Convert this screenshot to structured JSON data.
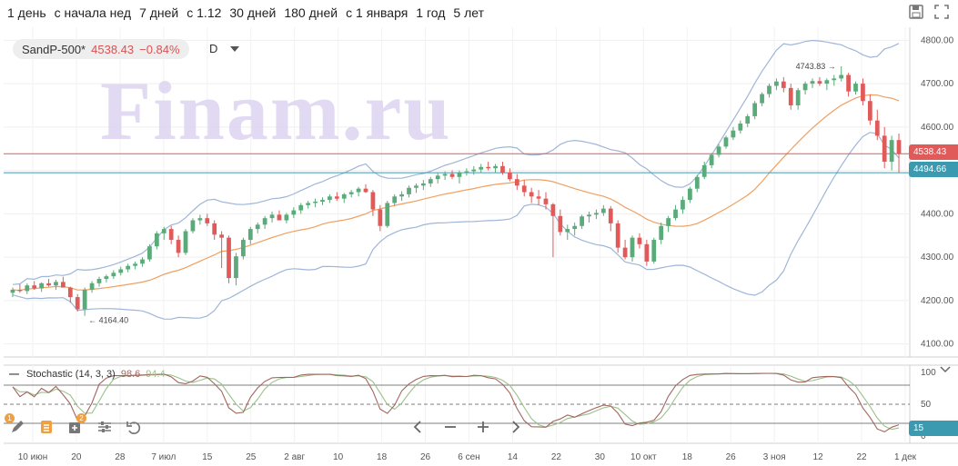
{
  "periods": [
    "1 день",
    "с начала нед",
    "7 дней",
    "с 1.12",
    "30 дней",
    "180 дней",
    "с 1 января",
    "1 год",
    "5 лет"
  ],
  "ticker": {
    "name": "SandP-500*",
    "price": "4538.43",
    "change": "−0.84%",
    "interval": "D"
  },
  "watermark": "Finam.ru",
  "colors": {
    "up": "#5aaa7a",
    "down": "#e05a5a",
    "bb": "#9fb6d8",
    "ma": "#f0a060",
    "stochK": "#a0665e",
    "stochD": "#9cc08a",
    "lastLine": "#e05a5a",
    "blueLine": "#3b9ab0"
  },
  "price_tags": {
    "last": "4538.43",
    "level": "4494.66"
  },
  "annotations": {
    "high": "4743.83",
    "low": "4164.40"
  },
  "stochastic": {
    "label": "Stochastic (14, 3, 3)",
    "k": "98.6",
    "d": "94.4",
    "current": "15"
  },
  "chart_data": {
    "type": "candlestick",
    "y_axis": {
      "ticks": [
        "4800.00",
        "4700.00",
        "4600.00",
        "4500.00",
        "4400.00",
        "4300.00",
        "4200.00",
        "4100.00"
      ],
      "ylim": [
        4070,
        4830
      ]
    },
    "x_axis": {
      "ticks": [
        "10 июн",
        "20",
        "28",
        "7 июл",
        "15",
        "25",
        "2 авг",
        "10",
        "18",
        "26",
        "6 сен",
        "14",
        "22",
        "30",
        "10 окт",
        "18",
        "26",
        "3 ноя",
        "12",
        "22",
        "1 дек"
      ]
    },
    "stoch_axis": {
      "ticks": [
        "100",
        "50",
        "0"
      ],
      "levels": [
        80,
        50,
        20
      ]
    },
    "candles": [
      [
        4218,
        4230,
        4208,
        4225
      ],
      [
        4225,
        4238,
        4218,
        4222
      ],
      [
        4222,
        4240,
        4215,
        4235
      ],
      [
        4235,
        4245,
        4225,
        4228
      ],
      [
        4228,
        4242,
        4220,
        4240
      ],
      [
        4240,
        4250,
        4232,
        4235
      ],
      [
        4235,
        4248,
        4225,
        4243
      ],
      [
        4243,
        4255,
        4235,
        4230
      ],
      [
        4230,
        4232,
        4195,
        4208
      ],
      [
        4208,
        4215,
        4175,
        4180
      ],
      [
        4180,
        4230,
        4165,
        4225
      ],
      [
        4225,
        4245,
        4218,
        4240
      ],
      [
        4240,
        4255,
        4232,
        4250
      ],
      [
        4250,
        4260,
        4242,
        4256
      ],
      [
        4256,
        4270,
        4250,
        4264
      ],
      [
        4264,
        4278,
        4258,
        4272
      ],
      [
        4272,
        4285,
        4265,
        4280
      ],
      [
        4280,
        4290,
        4272,
        4285
      ],
      [
        4285,
        4300,
        4278,
        4295
      ],
      [
        4295,
        4330,
        4290,
        4325
      ],
      [
        4325,
        4360,
        4318,
        4355
      ],
      [
        4355,
        4370,
        4340,
        4365
      ],
      [
        4365,
        4372,
        4330,
        4340
      ],
      [
        4340,
        4350,
        4300,
        4310
      ],
      [
        4310,
        4365,
        4305,
        4360
      ],
      [
        4360,
        4390,
        4355,
        4385
      ],
      [
        4385,
        4398,
        4375,
        4390
      ],
      [
        4390,
        4400,
        4372,
        4378
      ],
      [
        4378,
        4385,
        4340,
        4352
      ],
      [
        4352,
        4360,
        4275,
        4345
      ],
      [
        4345,
        4350,
        4240,
        4252
      ],
      [
        4252,
        4310,
        4235,
        4302
      ],
      [
        4302,
        4345,
        4295,
        4340
      ],
      [
        4340,
        4370,
        4330,
        4365
      ],
      [
        4365,
        4380,
        4355,
        4375
      ],
      [
        4375,
        4395,
        4365,
        4390
      ],
      [
        4390,
        4405,
        4380,
        4398
      ],
      [
        4398,
        4408,
        4385,
        4385
      ],
      [
        4385,
        4402,
        4378,
        4398
      ],
      [
        4398,
        4415,
        4390,
        4408
      ],
      [
        4408,
        4425,
        4400,
        4420
      ],
      [
        4420,
        4430,
        4412,
        4425
      ],
      [
        4425,
        4435,
        4415,
        4428
      ],
      [
        4428,
        4438,
        4420,
        4432
      ],
      [
        4432,
        4445,
        4425,
        4440
      ],
      [
        4440,
        4450,
        4430,
        4435
      ],
      [
        4435,
        4448,
        4425,
        4445
      ],
      [
        4445,
        4455,
        4438,
        4450
      ],
      [
        4450,
        4462,
        4440,
        4458
      ],
      [
        4458,
        4468,
        4448,
        4450
      ],
      [
        4450,
        4455,
        4395,
        4410
      ],
      [
        4410,
        4420,
        4360,
        4372
      ],
      [
        4372,
        4430,
        4368,
        4425
      ],
      [
        4425,
        4445,
        4418,
        4440
      ],
      [
        4440,
        4452,
        4430,
        4445
      ],
      [
        4445,
        4465,
        4438,
        4460
      ],
      [
        4460,
        4470,
        4448,
        4465
      ],
      [
        4465,
        4478,
        4455,
        4470
      ],
      [
        4470,
        4485,
        4462,
        4480
      ],
      [
        4480,
        4495,
        4470,
        4488
      ],
      [
        4488,
        4498,
        4478,
        4492
      ],
      [
        4492,
        4500,
        4480,
        4485
      ],
      [
        4485,
        4500,
        4470,
        4495
      ],
      [
        4495,
        4505,
        4488,
        4498
      ],
      [
        4498,
        4510,
        4490,
        4502
      ],
      [
        4502,
        4515,
        4495,
        4508
      ],
      [
        4508,
        4520,
        4500,
        4505
      ],
      [
        4505,
        4515,
        4495,
        4510
      ],
      [
        4510,
        4520,
        4490,
        4495
      ],
      [
        4495,
        4505,
        4475,
        4480
      ],
      [
        4480,
        4492,
        4455,
        4465
      ],
      [
        4465,
        4478,
        4440,
        4450
      ],
      [
        4450,
        4460,
        4425,
        4440
      ],
      [
        4440,
        4455,
        4420,
        4435
      ],
      [
        4435,
        4450,
        4410,
        4422
      ],
      [
        4422,
        4425,
        4300,
        4395
      ],
      [
        4395,
        4410,
        4350,
        4358
      ],
      [
        4358,
        4375,
        4340,
        4365
      ],
      [
        4365,
        4380,
        4350,
        4372
      ],
      [
        4372,
        4398,
        4365,
        4394
      ],
      [
        4394,
        4405,
        4380,
        4398
      ],
      [
        4398,
        4410,
        4388,
        4402
      ],
      [
        4402,
        4420,
        4395,
        4412
      ],
      [
        4412,
        4418,
        4360,
        4378
      ],
      [
        4378,
        4385,
        4310,
        4322
      ],
      [
        4322,
        4340,
        4295,
        4300
      ],
      [
        4300,
        4350,
        4290,
        4345
      ],
      [
        4345,
        4355,
        4320,
        4330
      ],
      [
        4330,
        4340,
        4280,
        4290
      ],
      [
        4290,
        4345,
        4285,
        4340
      ],
      [
        4340,
        4380,
        4330,
        4372
      ],
      [
        4372,
        4395,
        4358,
        4390
      ],
      [
        4390,
        4420,
        4385,
        4410
      ],
      [
        4410,
        4440,
        4400,
        4432
      ],
      [
        4432,
        4462,
        4425,
        4458
      ],
      [
        4458,
        4490,
        4450,
        4485
      ],
      [
        4485,
        4520,
        4480,
        4512
      ],
      [
        4512,
        4540,
        4505,
        4536
      ],
      [
        4536,
        4560,
        4530,
        4555
      ],
      [
        4555,
        4580,
        4550,
        4576
      ],
      [
        4576,
        4600,
        4570,
        4592
      ],
      [
        4592,
        4615,
        4585,
        4608
      ],
      [
        4608,
        4630,
        4600,
        4625
      ],
      [
        4625,
        4660,
        4618,
        4655
      ],
      [
        4655,
        4680,
        4648,
        4676
      ],
      [
        4676,
        4700,
        4668,
        4695
      ],
      [
        4695,
        4712,
        4685,
        4705
      ],
      [
        4705,
        4715,
        4680,
        4690
      ],
      [
        4690,
        4700,
        4640,
        4650
      ],
      [
        4650,
        4690,
        4640,
        4685
      ],
      [
        4685,
        4705,
        4675,
        4700
      ],
      [
        4700,
        4712,
        4690,
        4706
      ],
      [
        4706,
        4715,
        4695,
        4700
      ],
      [
        4700,
        4712,
        4685,
        4708
      ],
      [
        4708,
        4720,
        4695,
        4712
      ],
      [
        4712,
        4740,
        4705,
        4720
      ],
      [
        4720,
        4725,
        4670,
        4682
      ],
      [
        4682,
        4705,
        4675,
        4700
      ],
      [
        4700,
        4712,
        4650,
        4660
      ],
      [
        4660,
        4675,
        4605,
        4615
      ],
      [
        4615,
        4640,
        4570,
        4580
      ],
      [
        4580,
        4600,
        4505,
        4520
      ],
      [
        4520,
        4580,
        4500,
        4570
      ],
      [
        4570,
        4585,
        4495,
        4538
      ]
    ]
  }
}
